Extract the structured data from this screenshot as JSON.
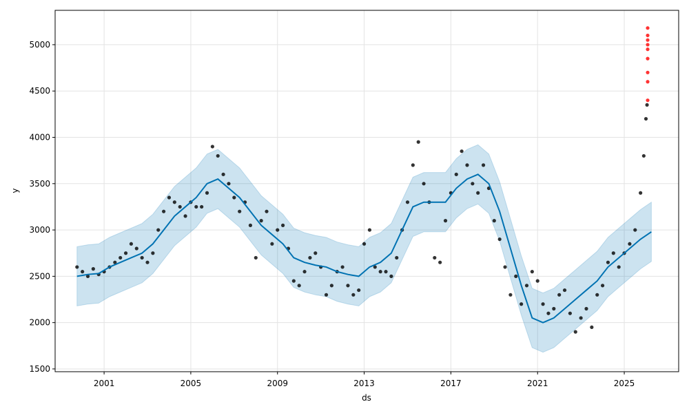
{
  "chart_data": {
    "type": "line",
    "xlabel": "ds",
    "ylabel": "y",
    "xlim": [
      1998.74,
      2027.51
    ],
    "ylim": [
      1470,
      5371
    ],
    "xticks": [
      2001,
      2005,
      2009,
      2013,
      2017,
      2021,
      2025
    ],
    "yticks": [
      1500,
      2000,
      2500,
      3000,
      3500,
      4000,
      4500,
      5000
    ],
    "grid": true,
    "series": [
      {
        "kind": "band",
        "color": "#0072b2",
        "x": [
          1999.75,
          2000.25,
          2000.75,
          2001.25,
          2001.75,
          2002.25,
          2002.75,
          2003.25,
          2003.75,
          2004.25,
          2004.75,
          2005.25,
          2005.75,
          2006.25,
          2006.75,
          2007.25,
          2007.75,
          2008.25,
          2008.75,
          2009.25,
          2009.75,
          2010.25,
          2010.75,
          2011.25,
          2011.75,
          2012.25,
          2012.75,
          2013.25,
          2013.75,
          2014.25,
          2014.75,
          2015.25,
          2015.75,
          2016.25,
          2016.75,
          2017.25,
          2017.75,
          2018.25,
          2018.75,
          2019.25,
          2019.75,
          2020.25,
          2020.75,
          2021.25,
          2021.75,
          2022.25,
          2022.75,
          2023.25,
          2023.75,
          2024.25,
          2024.75,
          2025.25,
          2025.75,
          2026.25
        ],
        "lower": [
          2180,
          2200,
          2210,
          2280,
          2330,
          2380,
          2430,
          2530,
          2680,
          2830,
          2930,
          3030,
          3180,
          3230,
          3130,
          3030,
          2880,
          2730,
          2630,
          2530,
          2380,
          2330,
          2300,
          2280,
          2230,
          2200,
          2180,
          2280,
          2330,
          2430,
          2680,
          2930,
          2980,
          2980,
          2980,
          3130,
          3230,
          3280,
          3180,
          2880,
          2480,
          2080,
          1730,
          1680,
          1730,
          1830,
          1930,
          2030,
          2130,
          2280,
          2380,
          2480,
          2580,
          2660
        ],
        "upper": [
          2820,
          2840,
          2850,
          2920,
          2970,
          3020,
          3070,
          3170,
          3320,
          3470,
          3570,
          3670,
          3820,
          3870,
          3770,
          3670,
          3520,
          3370,
          3270,
          3170,
          3020,
          2970,
          2940,
          2920,
          2870,
          2840,
          2820,
          2920,
          2970,
          3070,
          3320,
          3570,
          3620,
          3620,
          3620,
          3770,
          3870,
          3920,
          3820,
          3520,
          3120,
          2720,
          2370,
          2320,
          2370,
          2470,
          2570,
          2670,
          2770,
          2920,
          3020,
          3120,
          3220,
          3300
        ]
      },
      {
        "kind": "scatter",
        "color": "#000000",
        "x": [
          1999.75,
          2000,
          2000.25,
          2000.5,
          2000.75,
          2001,
          2001.25,
          2001.5,
          2001.75,
          2002,
          2002.25,
          2002.5,
          2002.75,
          2003,
          2003.25,
          2003.5,
          2003.75,
          2004,
          2004.25,
          2004.5,
          2004.75,
          2005,
          2005.25,
          2005.5,
          2005.75,
          2006,
          2006.25,
          2006.5,
          2006.75,
          2007,
          2007.25,
          2007.5,
          2007.75,
          2008,
          2008.25,
          2008.5,
          2008.75,
          2009,
          2009.25,
          2009.5,
          2009.75,
          2010,
          2010.25,
          2010.5,
          2010.75,
          2011,
          2011.25,
          2011.5,
          2011.75,
          2012,
          2012.25,
          2012.5,
          2012.75,
          2013,
          2013.25,
          2013.5,
          2013.75,
          2014,
          2014.25,
          2014.5,
          2014.75,
          2015,
          2015.25,
          2015.5,
          2015.75,
          2016,
          2016.25,
          2016.5,
          2016.75,
          2017,
          2017.25,
          2017.5,
          2017.75,
          2018,
          2018.25,
          2018.5,
          2018.75,
          2019,
          2019.25,
          2019.5,
          2019.75,
          2020,
          2020.25,
          2020.5,
          2020.75,
          2021,
          2021.25,
          2021.5,
          2021.75,
          2022,
          2022.25,
          2022.5,
          2022.75,
          2023,
          2023.25,
          2023.5,
          2023.75,
          2024,
          2024.25,
          2024.5,
          2024.75,
          2025,
          2025.25,
          2025.5,
          2025.75,
          2025.9,
          2026,
          2026.05
        ],
        "values": [
          2600,
          2550,
          2500,
          2580,
          2520,
          2550,
          2600,
          2650,
          2700,
          2750,
          2850,
          2800,
          2700,
          2650,
          2750,
          3000,
          3200,
          3350,
          3300,
          3250,
          3150,
          3300,
          3250,
          3250,
          3400,
          3900,
          3800,
          3600,
          3500,
          3350,
          3200,
          3300,
          3050,
          2700,
          3100,
          3200,
          2850,
          3000,
          3050,
          2800,
          2450,
          2400,
          2550,
          2700,
          2750,
          2600,
          2300,
          2400,
          2550,
          2600,
          2400,
          2300,
          2350,
          2850,
          3000,
          2600,
          2550,
          2550,
          2500,
          2700,
          3000,
          3300,
          3700,
          3950,
          3500,
          3300,
          2700,
          2650,
          3100,
          3400,
          3600,
          3850,
          3700,
          3500,
          3400,
          3700,
          3450,
          3100,
          2900,
          2600,
          2300,
          2500,
          2200,
          2400,
          2550,
          2450,
          2200,
          2100,
          2150,
          2300,
          2350,
          2100,
          1900,
          2050,
          2150,
          1950,
          2300,
          2400,
          2650,
          2750,
          2600,
          2750,
          2850,
          3000,
          3400,
          3800,
          4200,
          4350
        ]
      },
      {
        "kind": "line",
        "color": "#0072b2",
        "x": [
          1999.75,
          2000.25,
          2000.75,
          2001.25,
          2001.75,
          2002.25,
          2002.75,
          2003.25,
          2003.75,
          2004.25,
          2004.75,
          2005.25,
          2005.75,
          2006.25,
          2006.75,
          2007.25,
          2007.75,
          2008.25,
          2008.75,
          2009.25,
          2009.75,
          2010.25,
          2010.75,
          2011.25,
          2011.75,
          2012.25,
          2012.75,
          2013.25,
          2013.75,
          2014.25,
          2014.75,
          2015.25,
          2015.75,
          2016.25,
          2016.75,
          2017.25,
          2017.75,
          2018.25,
          2018.75,
          2019.25,
          2019.75,
          2020.25,
          2020.75,
          2021.25,
          2021.75,
          2022.25,
          2022.75,
          2023.25,
          2023.75,
          2024.25,
          2024.75,
          2025.25,
          2025.75,
          2026.25
        ],
        "values": [
          2500,
          2520,
          2530,
          2600,
          2650,
          2700,
          2750,
          2850,
          3000,
          3150,
          3250,
          3350,
          3500,
          3550,
          3450,
          3350,
          3200,
          3050,
          2950,
          2850,
          2700,
          2650,
          2620,
          2600,
          2550,
          2520,
          2500,
          2600,
          2650,
          2750,
          3000,
          3250,
          3300,
          3300,
          3300,
          3450,
          3550,
          3600,
          3500,
          3200,
          2800,
          2400,
          2050,
          2000,
          2050,
          2150,
          2250,
          2350,
          2450,
          2600,
          2700,
          2800,
          2900,
          2980
        ]
      },
      {
        "kind": "scatter",
        "color": "#ff0000",
        "x": [
          2026.08,
          2026.08,
          2026.08,
          2026.08,
          2026.08,
          2026.08,
          2026.08,
          2026.08,
          2026.08
        ],
        "values": [
          4400,
          4600,
          4700,
          4850,
          4950,
          5000,
          5050,
          5100,
          5180
        ]
      }
    ]
  }
}
